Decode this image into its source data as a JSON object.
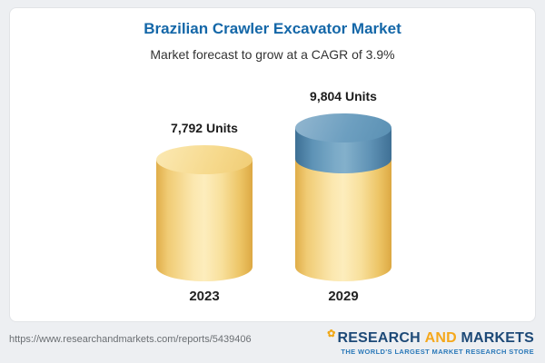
{
  "header": {
    "title": "Brazilian Crawler Excavator Market",
    "subtitle": "Market forecast to grow at a CAGR of 3.9%"
  },
  "chart_data": {
    "type": "bar",
    "title": "Brazilian Crawler Excavator Market",
    "subtitle": "Market forecast to grow at a CAGR of 3.9%",
    "categories": [
      "2023",
      "2029"
    ],
    "values": [
      7792,
      9804
    ],
    "value_labels": [
      "7,792 Units",
      "9,804 Units"
    ],
    "ylabel": "Units",
    "cagr_percent": 3.9,
    "colors": {
      "bar_body": "#f6d88e",
      "growth_segment": "#5e93b6",
      "title": "#1467a8"
    }
  },
  "footer": {
    "url": "https://www.researchandmarkets.com/reports/5439406",
    "logo": {
      "word1": "RESEARCH",
      "word2": "AND",
      "word3": "MARKETS",
      "tagline": "THE WORLD'S LARGEST MARKET RESEARCH STORE"
    }
  }
}
